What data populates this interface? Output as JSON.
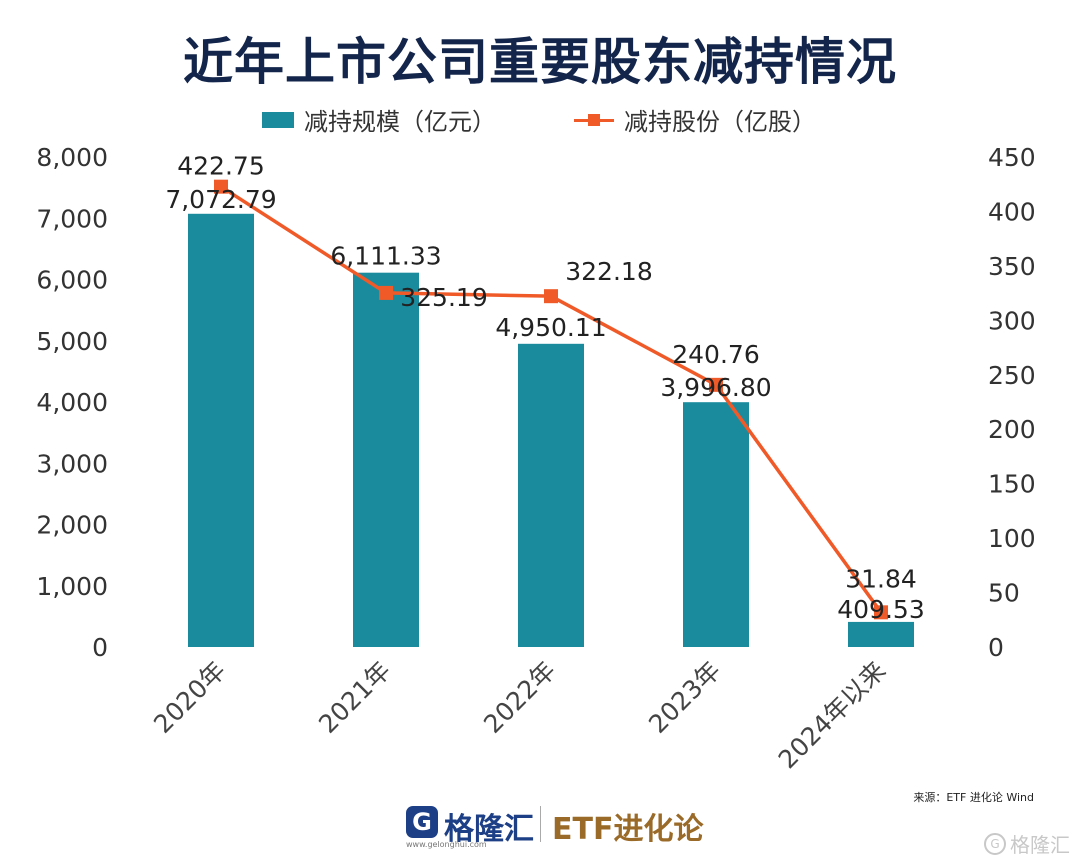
{
  "title": "近年上市公司重要股东减持情况",
  "legend": {
    "bar_label": "减持规模（亿元）",
    "line_label": "减持股份（亿股）"
  },
  "colors": {
    "bar": "#1a8b9d",
    "line": "#f05a28",
    "title": "#13254b"
  },
  "chart_data": {
    "type": "bar",
    "categories": [
      "2020年",
      "2021年",
      "2022年",
      "2023年",
      "2024年以来"
    ],
    "series": [
      {
        "name": "减持规模（亿元）",
        "type": "bar",
        "axis": "left",
        "values": [
          7072.79,
          6111.33,
          4950.11,
          3996.8,
          409.53
        ],
        "labels": [
          "7,072.79",
          "6,111.33",
          "4,950.11",
          "3,996.80",
          "409.53"
        ]
      },
      {
        "name": "减持股份（亿股）",
        "type": "line",
        "axis": "right",
        "values": [
          422.75,
          325.19,
          322.18,
          240.76,
          31.84
        ],
        "labels": [
          "422.75",
          "325.19",
          "322.18",
          "240.76",
          "31.84"
        ]
      }
    ],
    "ylim_left": [
      0,
      8000
    ],
    "ylim_right": [
      0,
      450
    ],
    "yticks_left": [
      "0",
      "1,000",
      "2,000",
      "3,000",
      "4,000",
      "5,000",
      "6,000",
      "7,000",
      "8,000"
    ],
    "yticks_right": [
      "0",
      "50",
      "100",
      "150",
      "200",
      "250",
      "300",
      "350",
      "400",
      "450"
    ],
    "grid": false,
    "legend_position": "top"
  },
  "footer": {
    "source": "来源：ETF 进化论   Wind",
    "logo_mark": "G",
    "logo_name": "格隆汇",
    "logo_url": "www.gelonghui.com",
    "brand": "ETF进化论",
    "watermark": "格隆汇"
  }
}
